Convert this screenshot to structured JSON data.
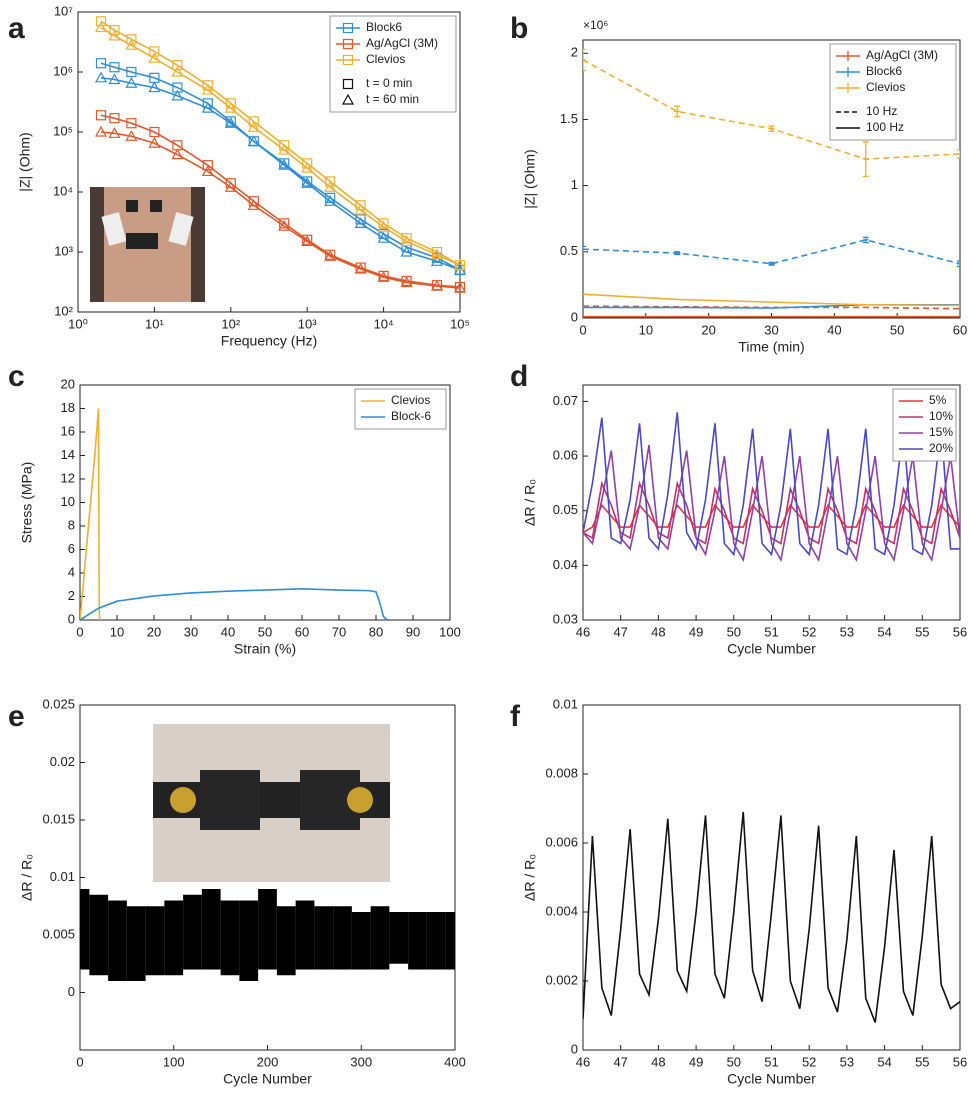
{
  "chart_data": [
    {
      "type": "line",
      "panel": "a",
      "x_label": "Frequency (Hz)",
      "y_label": "|Z| (Ohm)",
      "xlog": true,
      "ylog": true,
      "legend": "upper right",
      "xlim": [
        1,
        100000
      ],
      "ylim": [
        100,
        10000000
      ],
      "xticks": [
        {
          "value": 1,
          "label": "10⁰"
        },
        {
          "value": 10,
          "label": "10¹"
        },
        {
          "value": 100,
          "label": "10²"
        },
        {
          "value": 1000,
          "label": "10³"
        },
        {
          "value": 10000,
          "label": "10⁴"
        },
        {
          "value": 100000,
          "label": "10⁵"
        }
      ],
      "yticks": [
        {
          "value": 100,
          "label": "10²"
        },
        {
          "value": 1000,
          "label": "10³"
        },
        {
          "value": 10000,
          "label": "10⁴"
        },
        {
          "value": 100000,
          "label": "10⁵"
        },
        {
          "value": 1000000,
          "label": "10⁶"
        },
        {
          "value": 10000000,
          "label": "10⁷"
        }
      ],
      "x": [
        2,
        3,
        5,
        10,
        20,
        50,
        100,
        200,
        500,
        1000,
        2000,
        5000,
        10000,
        20000,
        50000,
        100000
      ],
      "marker_legend": [
        {
          "label": "t = 0 min",
          "marker": "square"
        },
        {
          "label": "t = 60 min",
          "marker": "triangle"
        }
      ],
      "series": [
        {
          "name": "Block6",
          "color": "#2f8fd6",
          "marker": "square",
          "values": [
            1400000,
            1200000,
            1000000,
            800000,
            550000,
            300000,
            150000,
            70000,
            30000,
            15000,
            8000,
            3500,
            2000,
            1200,
            800,
            500
          ]
        },
        {
          "color": "#2f8fd6",
          "marker": "triangle",
          "values": [
            800000,
            750000,
            650000,
            550000,
            400000,
            250000,
            140000,
            70000,
            28000,
            14000,
            7000,
            3000,
            1700,
            1000,
            700,
            500
          ]
        },
        {
          "name": "Ag/AgCl (3M)",
          "color": "#e2582a",
          "marker": "square",
          "values": [
            190000,
            170000,
            140000,
            100000,
            60000,
            28000,
            14000,
            7000,
            3000,
            1600,
            900,
            550,
            400,
            330,
            280,
            260
          ]
        },
        {
          "color": "#e2582a",
          "marker": "triangle",
          "values": [
            100000,
            95000,
            85000,
            65000,
            42000,
            22000,
            12000,
            6000,
            2700,
            1500,
            850,
            520,
            380,
            310,
            270,
            250
          ]
        },
        {
          "name": "Clevios",
          "color": "#efb030",
          "marker": "square",
          "values": [
            7000000,
            5000000,
            3500000,
            2200000,
            1300000,
            600000,
            300000,
            150000,
            60000,
            30000,
            15000,
            6000,
            3000,
            1700,
            1000,
            600
          ]
        },
        {
          "color": "#efb030",
          "marker": "triangle",
          "values": [
            5500000,
            4000000,
            2800000,
            1700000,
            1000000,
            500000,
            250000,
            120000,
            50000,
            25000,
            12000,
            5000,
            2600,
            1500,
            900,
            600
          ]
        }
      ]
    },
    {
      "type": "line",
      "panel": "b",
      "x_label": "Time (min)",
      "y_label": "|Z| (Ohm)",
      "y_exponent": "×10⁶",
      "legend": "upper right",
      "xlim": [
        0,
        60
      ],
      "ylim": [
        0,
        2100000
      ],
      "xticks": [
        0,
        10,
        20,
        30,
        40,
        50,
        60
      ],
      "yticks": [
        0,
        {
          "value": 500000,
          "label": "0.5"
        },
        {
          "value": 1000000,
          "label": "1"
        },
        {
          "value": 1500000,
          "label": "1.5"
        },
        {
          "value": 2000000,
          "label": "2"
        }
      ],
      "x": [
        0,
        15,
        30,
        45,
        60
      ],
      "linestyle_legend": [
        {
          "label": "10 Hz",
          "dash": true
        },
        {
          "label": "100 Hz",
          "dash": false
        }
      ],
      "series": [
        {
          "name": "Ag/AgCl (3M)",
          "color": "#e2582a",
          "dash": true,
          "values": [
            90000,
            85000,
            80000,
            80000,
            70000
          ]
        },
        {
          "color": "#e2582a",
          "dash": false,
          "values": [
            10000,
            10000,
            10000,
            10000,
            10000
          ]
        },
        {
          "name": "Block6",
          "color": "#2f8fd6",
          "dash": true,
          "values": [
            520000,
            490000,
            410000,
            590000,
            410000
          ],
          "errors": [
            20000,
            10000,
            10000,
            20000,
            20000
          ]
        },
        {
          "color": "#2f8fd6",
          "dash": false,
          "values": [
            80000,
            80000,
            75000,
            100000,
            100000
          ]
        },
        {
          "name": "Clevios",
          "color": "#efb030",
          "dash": true,
          "values": [
            1950000,
            1560000,
            1430000,
            1200000,
            1240000
          ],
          "errors": [
            80000,
            40000,
            20000,
            130000,
            30000
          ]
        },
        {
          "color": "#efb030",
          "dash": false,
          "values": [
            180000,
            140000,
            120000,
            100000,
            95000
          ]
        }
      ]
    },
    {
      "type": "line",
      "panel": "c",
      "x_label": "Strain (%)",
      "y_label": "Stress (MPa)",
      "legend": "upper right",
      "xlim": [
        0,
        100
      ],
      "ylim": [
        0,
        20
      ],
      "xticks": [
        0,
        10,
        20,
        30,
        40,
        50,
        60,
        70,
        80,
        90,
        100
      ],
      "yticks": [
        0,
        2,
        4,
        6,
        8,
        10,
        12,
        14,
        16,
        18,
        20
      ],
      "series": [
        {
          "name": "Clevios",
          "color": "#efb030",
          "x": [
            0,
            2,
            4,
            5,
            5.2,
            5.3
          ],
          "values": [
            0,
            7,
            14,
            18,
            1,
            0
          ]
        },
        {
          "name": "Block-6",
          "color": "#2f8fd6",
          "x": [
            0,
            5,
            10,
            20,
            30,
            40,
            50,
            60,
            70,
            78,
            80,
            81,
            82,
            83
          ],
          "values": [
            0,
            1.0,
            1.6,
            2.05,
            2.3,
            2.45,
            2.55,
            2.65,
            2.55,
            2.5,
            2.4,
            1.5,
            0.3,
            0
          ]
        }
      ]
    },
    {
      "type": "line",
      "panel": "d",
      "x_label": "Cycle Number",
      "y_label": "ΔR / R₀",
      "legend": "upper right",
      "xlim": [
        46,
        56
      ],
      "ylim": [
        0.03,
        0.073
      ],
      "xticks": [
        46,
        47,
        48,
        49,
        50,
        51,
        52,
        53,
        54,
        55,
        56
      ],
      "yticks": [
        0.03,
        0.04,
        0.05,
        0.06,
        0.07
      ],
      "x": [
        46,
        46.25,
        46.5,
        46.75,
        47,
        47.25,
        47.5,
        47.75,
        48,
        48.25,
        48.5,
        48.75,
        49,
        49.25,
        49.5,
        49.75,
        50,
        50.25,
        50.5,
        50.75,
        51,
        51.25,
        51.5,
        51.75,
        52,
        52.25,
        52.5,
        52.75,
        53,
        53.25,
        53.5,
        53.75,
        54,
        54.25,
        54.5,
        54.75,
        55,
        55.25,
        55.5,
        55.75,
        56
      ],
      "series": [
        {
          "name": "5%",
          "color": "#e8353a",
          "values": [
            0.046,
            0.047,
            0.051,
            0.049,
            0.047,
            0.047,
            0.051,
            0.049,
            0.047,
            0.047,
            0.051,
            0.049,
            0.047,
            0.047,
            0.051,
            0.049,
            0.047,
            0.047,
            0.051,
            0.049,
            0.047,
            0.047,
            0.051,
            0.049,
            0.047,
            0.047,
            0.051,
            0.049,
            0.047,
            0.047,
            0.051,
            0.049,
            0.047,
            0.047,
            0.051,
            0.049,
            0.047,
            0.047,
            0.051,
            0.049,
            0.047
          ]
        },
        {
          "name": "10%",
          "color": "#c0306a",
          "values": [
            0.046,
            0.045,
            0.055,
            0.051,
            0.046,
            0.045,
            0.055,
            0.051,
            0.046,
            0.045,
            0.055,
            0.051,
            0.045,
            0.044,
            0.054,
            0.05,
            0.045,
            0.044,
            0.054,
            0.05,
            0.045,
            0.044,
            0.054,
            0.05,
            0.045,
            0.044,
            0.054,
            0.05,
            0.045,
            0.044,
            0.054,
            0.05,
            0.045,
            0.044,
            0.054,
            0.05,
            0.045,
            0.044,
            0.054,
            0.05,
            0.045
          ]
        },
        {
          "name": "15%",
          "color": "#9040a8",
          "values": [
            0.046,
            0.044,
            0.052,
            0.061,
            0.045,
            0.043,
            0.051,
            0.062,
            0.045,
            0.043,
            0.052,
            0.061,
            0.045,
            0.042,
            0.05,
            0.06,
            0.044,
            0.041,
            0.05,
            0.06,
            0.044,
            0.041,
            0.05,
            0.06,
            0.044,
            0.041,
            0.05,
            0.06,
            0.044,
            0.041,
            0.05,
            0.06,
            0.044,
            0.041,
            0.05,
            0.06,
            0.044,
            0.041,
            0.05,
            0.06,
            0.045
          ]
        },
        {
          "name": "20%",
          "color": "#4a4ac0",
          "values": [
            0.046,
            0.055,
            0.067,
            0.045,
            0.044,
            0.052,
            0.066,
            0.045,
            0.043,
            0.053,
            0.068,
            0.046,
            0.043,
            0.052,
            0.066,
            0.044,
            0.042,
            0.051,
            0.065,
            0.044,
            0.042,
            0.051,
            0.065,
            0.044,
            0.042,
            0.051,
            0.065,
            0.043,
            0.042,
            0.051,
            0.065,
            0.043,
            0.042,
            0.051,
            0.065,
            0.043,
            0.042,
            0.051,
            0.065,
            0.043,
            0.043
          ]
        }
      ]
    },
    {
      "type": "area",
      "panel": "e",
      "x_label": "Cycle Number",
      "y_label": "ΔR / R₀",
      "xlim": [
        0,
        400
      ],
      "ylim": [
        -0.005,
        0.025
      ],
      "xticks": [
        0,
        100,
        200,
        300,
        400
      ],
      "yticks": [
        0,
        0.005,
        0.01,
        0.015,
        0.02,
        0.025
      ],
      "x": [
        0,
        20,
        40,
        60,
        80,
        100,
        120,
        140,
        160,
        180,
        200,
        220,
        240,
        260,
        280,
        300,
        320,
        340,
        360,
        380,
        400
      ],
      "series": [
        {
          "color": "#000000",
          "lower": [
            0.002,
            0.0015,
            0.001,
            0.001,
            0.0015,
            0.0015,
            0.002,
            0.002,
            0.0015,
            0.001,
            0.002,
            0.0015,
            0.002,
            0.002,
            0.002,
            0.002,
            0.002,
            0.0025,
            0.002,
            0.002,
            0.002
          ],
          "upper": [
            0.009,
            0.0085,
            0.008,
            0.0075,
            0.0075,
            0.008,
            0.0085,
            0.009,
            0.008,
            0.008,
            0.009,
            0.0075,
            0.008,
            0.0075,
            0.0075,
            0.007,
            0.0075,
            0.007,
            0.007,
            0.007,
            0.007
          ]
        }
      ]
    },
    {
      "type": "line",
      "panel": "f",
      "x_label": "Cycle Number",
      "y_label": "ΔR / R₀",
      "xlim": [
        46,
        56
      ],
      "ylim": [
        0,
        0.01
      ],
      "xticks": [
        46,
        47,
        48,
        49,
        50,
        51,
        52,
        53,
        54,
        55,
        56
      ],
      "yticks": [
        0,
        0.002,
        0.004,
        0.006,
        0.008,
        0.01
      ],
      "x": [
        46,
        46.25,
        46.5,
        46.75,
        47,
        47.25,
        47.5,
        47.75,
        48,
        48.25,
        48.5,
        48.75,
        49,
        49.25,
        49.5,
        49.75,
        50,
        50.25,
        50.5,
        50.75,
        51,
        51.25,
        51.5,
        51.75,
        52,
        52.25,
        52.5,
        52.75,
        53,
        53.25,
        53.5,
        53.75,
        54,
        54.25,
        54.5,
        54.75,
        55,
        55.25,
        55.5,
        55.75,
        56
      ],
      "series": [
        {
          "color": "#111111",
          "values": [
            0.0009,
            0.0062,
            0.0018,
            0.001,
            0.0035,
            0.0064,
            0.0022,
            0.0016,
            0.0038,
            0.0067,
            0.0023,
            0.0017,
            0.004,
            0.0068,
            0.0022,
            0.0015,
            0.004,
            0.0069,
            0.0023,
            0.0014,
            0.004,
            0.0068,
            0.002,
            0.0012,
            0.0035,
            0.0065,
            0.0018,
            0.0011,
            0.0032,
            0.0062,
            0.0015,
            0.0008,
            0.003,
            0.0058,
            0.0017,
            0.001,
            0.0033,
            0.0062,
            0.0019,
            0.0012,
            0.0014
          ]
        }
      ]
    }
  ]
}
